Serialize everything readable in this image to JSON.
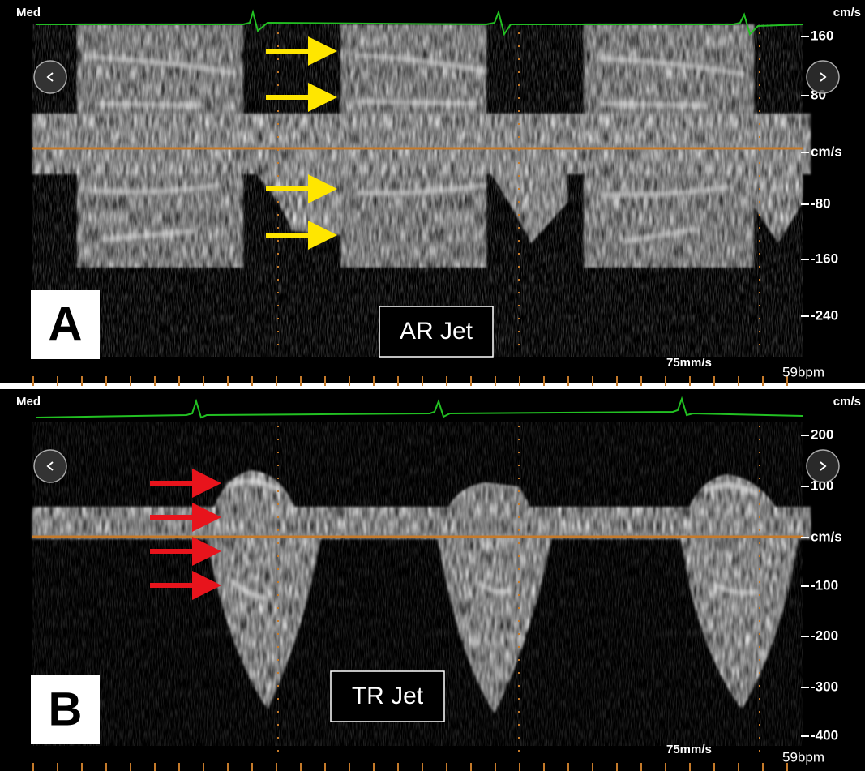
{
  "panels": [
    {
      "label": "A",
      "jet": "AR Jet",
      "mode": "Med",
      "unit_top": "cm/s",
      "scale": [
        "160",
        "80",
        "cm/s",
        "-80",
        "-160",
        "-240"
      ],
      "sweep": "75mm/s",
      "heart_rate": "59bpm"
    },
    {
      "label": "B",
      "jet": "TR Jet",
      "mode": "Med",
      "unit_top": "cm/s",
      "scale": [
        "200",
        "100",
        "cm/s",
        "-100",
        "-200",
        "-300",
        "-400"
      ],
      "sweep": "75mm/s",
      "heart_rate": "59bpm"
    }
  ]
}
